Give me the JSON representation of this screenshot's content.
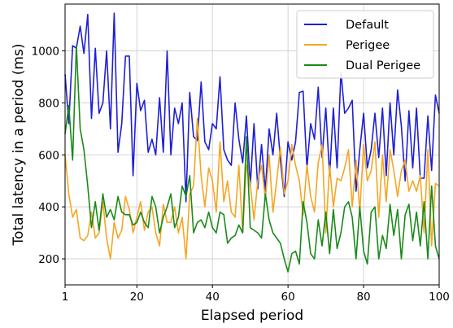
{
  "chart_data": {
    "type": "line",
    "xlabel": "Elapsed period",
    "ylabel": "Total latency in a period (ms)",
    "xlim": [
      1,
      100
    ],
    "ylim": [
      100,
      1180
    ],
    "xticks": [
      1,
      20,
      40,
      60,
      80,
      100
    ],
    "yticks": [
      200,
      400,
      600,
      800,
      1000
    ],
    "grid": true,
    "legend_position": "top-right",
    "series": [
      {
        "name": "Default",
        "color": "#1f1fd6",
        "x": [
          1,
          2,
          3,
          4,
          5,
          6,
          7,
          8,
          9,
          10,
          11,
          12,
          13,
          14,
          15,
          16,
          17,
          18,
          19,
          20,
          21,
          22,
          23,
          24,
          25,
          26,
          27,
          28,
          29,
          30,
          31,
          32,
          33,
          34,
          35,
          36,
          37,
          38,
          39,
          40,
          41,
          42,
          43,
          44,
          45,
          46,
          47,
          48,
          49,
          50,
          51,
          52,
          53,
          54,
          55,
          56,
          57,
          58,
          59,
          60,
          61,
          62,
          63,
          64,
          65,
          66,
          67,
          68,
          69,
          70,
          71,
          72,
          73,
          74,
          75,
          76,
          77,
          78,
          79,
          80,
          81,
          82,
          83,
          84,
          85,
          86,
          87,
          88,
          89,
          90,
          91,
          92,
          93,
          94,
          95,
          96,
          97,
          98,
          99,
          100
        ],
        "values": [
          910,
          720,
          1020,
          1010,
          1095,
          990,
          1140,
          740,
          1010,
          760,
          800,
          1000,
          700,
          1145,
          610,
          720,
          980,
          980,
          520,
          875,
          770,
          810,
          610,
          660,
          600,
          820,
          610,
          1000,
          600,
          780,
          720,
          800,
          420,
          840,
          670,
          655,
          880,
          650,
          620,
          720,
          700,
          900,
          620,
          580,
          560,
          800,
          660,
          570,
          750,
          480,
          720,
          470,
          640,
          460,
          700,
          600,
          760,
          580,
          440,
          650,
          580,
          650,
          840,
          845,
          550,
          720,
          660,
          860,
          590,
          780,
          520,
          780,
          550,
          920,
          760,
          780,
          810,
          460,
          620,
          760,
          550,
          620,
          760,
          590,
          780,
          520,
          800,
          600,
          850,
          710,
          500,
          770,
          550,
          780,
          510,
          510,
          750,
          540,
          830,
          760
        ]
      },
      {
        "name": "Perigee",
        "color": "#f5a623",
        "x": [
          1,
          2,
          3,
          4,
          5,
          6,
          7,
          8,
          9,
          10,
          11,
          12,
          13,
          14,
          15,
          16,
          17,
          18,
          19,
          20,
          21,
          22,
          23,
          24,
          25,
          26,
          27,
          28,
          29,
          30,
          31,
          32,
          33,
          34,
          35,
          36,
          37,
          38,
          39,
          40,
          41,
          42,
          43,
          44,
          45,
          46,
          47,
          48,
          49,
          50,
          51,
          52,
          53,
          54,
          55,
          56,
          57,
          58,
          59,
          60,
          61,
          62,
          63,
          64,
          65,
          66,
          67,
          68,
          69,
          70,
          71,
          72,
          73,
          74,
          75,
          76,
          77,
          78,
          79,
          80,
          81,
          82,
          83,
          84,
          85,
          86,
          87,
          88,
          89,
          90,
          91,
          92,
          93,
          94,
          95,
          96,
          97,
          98,
          99,
          100
        ],
        "values": [
          600,
          450,
          360,
          390,
          280,
          270,
          290,
          380,
          280,
          300,
          420,
          280,
          200,
          340,
          280,
          310,
          440,
          390,
          300,
          360,
          420,
          310,
          380,
          400,
          300,
          250,
          410,
          340,
          340,
          400,
          300,
          360,
          200,
          450,
          480,
          740,
          520,
          400,
          550,
          500,
          380,
          650,
          420,
          500,
          380,
          360,
          560,
          300,
          560,
          490,
          350,
          500,
          560,
          430,
          600,
          380,
          500,
          630,
          450,
          500,
          640,
          560,
          500,
          370,
          560,
          440,
          380,
          570,
          640,
          300,
          560,
          400,
          510,
          500,
          550,
          620,
          400,
          580,
          380,
          640,
          500,
          540,
          650,
          360,
          600,
          420,
          620,
          540,
          440,
          540,
          580,
          460,
          500,
          460,
          520,
          300,
          620,
          250,
          490,
          480
        ]
      },
      {
        "name": "Dual Perigee",
        "color": "#1a8a1a",
        "x": [
          1,
          2,
          3,
          4,
          5,
          6,
          7,
          8,
          9,
          10,
          11,
          12,
          13,
          14,
          15,
          16,
          17,
          18,
          19,
          20,
          21,
          22,
          23,
          24,
          25,
          26,
          27,
          28,
          29,
          30,
          31,
          32,
          33,
          34,
          35,
          36,
          37,
          38,
          39,
          40,
          41,
          42,
          43,
          44,
          45,
          46,
          47,
          48,
          49,
          50,
          51,
          52,
          53,
          54,
          55,
          56,
          57,
          58,
          59,
          60,
          61,
          62,
          63,
          64,
          65,
          66,
          67,
          68,
          69,
          70,
          71,
          72,
          73,
          74,
          75,
          76,
          77,
          78,
          79,
          80,
          81,
          82,
          83,
          84,
          85,
          86,
          87,
          88,
          89,
          90,
          91,
          92,
          93,
          94,
          95,
          96,
          97,
          98,
          99,
          100
        ],
        "values": [
          680,
          790,
          580,
          1020,
          700,
          620,
          480,
          320,
          420,
          310,
          450,
          360,
          390,
          350,
          440,
          380,
          370,
          370,
          330,
          340,
          380,
          340,
          320,
          440,
          400,
          300,
          360,
          400,
          450,
          320,
          360,
          480,
          440,
          520,
          300,
          340,
          350,
          320,
          380,
          320,
          300,
          380,
          370,
          260,
          280,
          290,
          330,
          300,
          670,
          320,
          310,
          300,
          280,
          450,
          350,
          300,
          280,
          260,
          200,
          150,
          220,
          230,
          180,
          420,
          340,
          220,
          200,
          350,
          250,
          380,
          220,
          390,
          240,
          300,
          400,
          420,
          360,
          200,
          400,
          230,
          180,
          380,
          400,
          200,
          290,
          240,
          410,
          290,
          390,
          200,
          370,
          410,
          270,
          380,
          250,
          420,
          200,
          480,
          250,
          200
        ]
      }
    ]
  }
}
